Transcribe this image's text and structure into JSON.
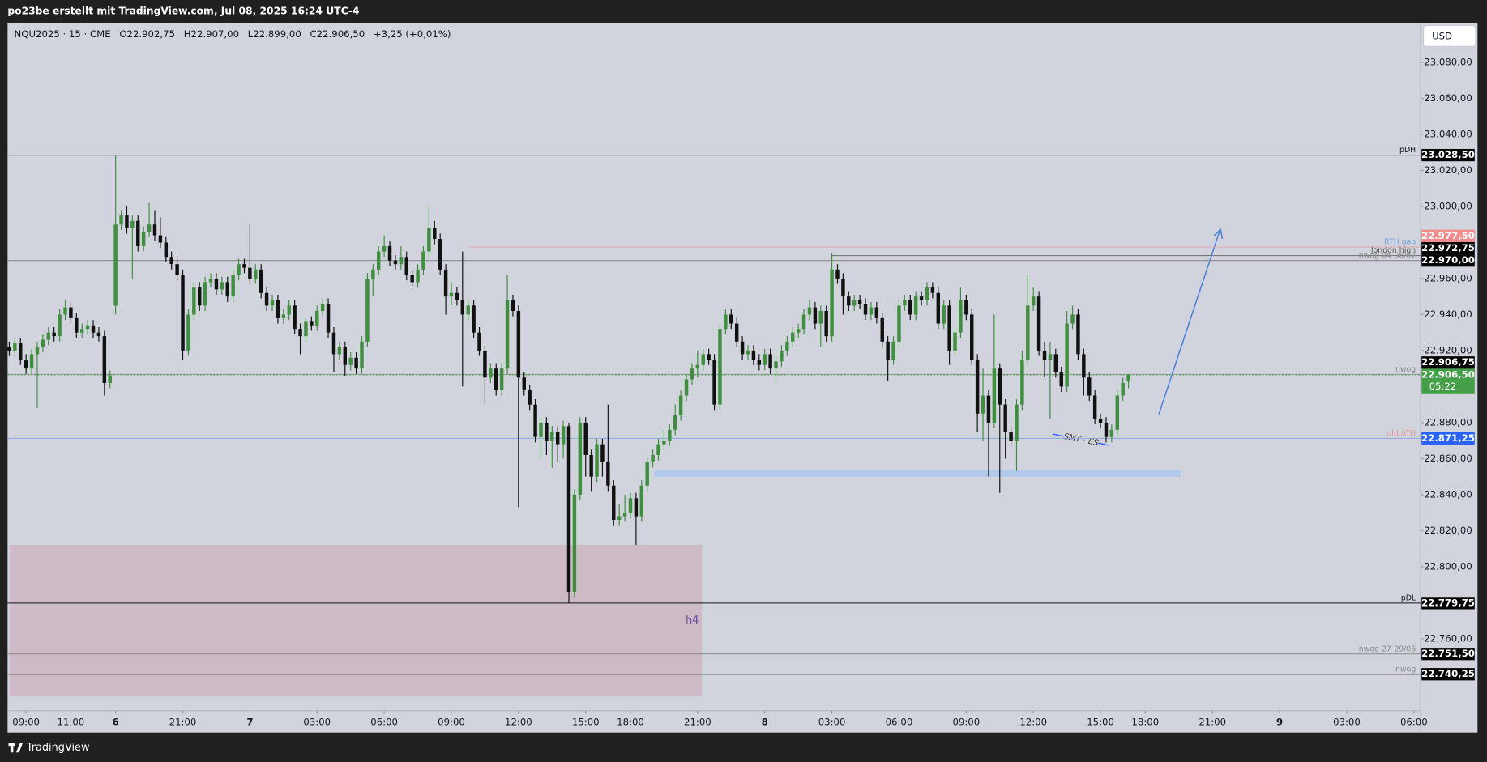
{
  "header": {
    "title": "po23be erstellt mit TradingView.com, Jul 08, 2025 16:24 UTC-4"
  },
  "footer": {
    "brand": "TradingView"
  },
  "currency": "USD",
  "chart_data": {
    "type": "candlestick",
    "legend": {
      "symbol": "NQU2025 · 15 · CME",
      "open": "O22.902,75",
      "high": "H22.907,00",
      "low": "L22.899,00",
      "close": "C22.906,50",
      "change": "+3,25 (+0,01%)"
    },
    "up_color": "#3f8f3f",
    "down_color": "#111111",
    "open": [
      22922,
      22920,
      22924,
      22915,
      22910,
      22918,
      22922,
      22926,
      22930,
      22928,
      22940,
      22944,
      22938,
      22930,
      22932,
      22934,
      22930,
      22928,
      22902,
      22945,
      22990,
      22995,
      22988,
      22992,
      22978,
      22986,
      22990,
      22984,
      22980,
      22972,
      22968,
      22962,
      22920,
      22940,
      22955,
      22945,
      22958,
      22960,
      22954,
      22958,
      22950,
      22962,
      22968,
      22966,
      22960,
      22965,
      22952,
      22945,
      22948,
      22938,
      22940,
      22945,
      22932,
      22928,
      22936,
      22934,
      22942,
      22946,
      22930,
      22918,
      22922,
      22912,
      22916,
      22910,
      22925,
      22960,
      22965,
      22975,
      22978,
      22970,
      22968,
      22972,
      22962,
      22958,
      22965,
      22975,
      22988,
      22982,
      22965,
      22950,
      22952,
      22948,
      22940,
      22945,
      22930,
      22920,
      22905,
      22910,
      22898,
      22910,
      22948,
      22942,
      22905,
      22898,
      22890,
      22872,
      22880,
      22870,
      22875,
      22868,
      22878,
      22786,
      22840,
      22880,
      22862,
      22850,
      22868,
      22858,
      22845,
      22826,
      22828,
      22830,
      22838,
      22828,
      22845,
      22858,
      22862,
      22868,
      22870,
      22876,
      22884,
      22895,
      22904,
      22910,
      22912,
      22918,
      22915,
      22890,
      22932,
      22940,
      22935,
      22925,
      22918,
      22920,
      22915,
      22912,
      22918,
      22910,
      22914,
      22920,
      22925,
      22930,
      22932,
      22940,
      22944,
      22935,
      22942,
      22928,
      22965,
      22960,
      22950,
      22945,
      22948,
      22946,
      22940,
      22944,
      22938,
      22925,
      22915,
      22925,
      22945,
      22948,
      22940,
      22950,
      22948,
      22955,
      22952,
      22935,
      22945,
      22920,
      22930,
      22948,
      22940,
      22915,
      22885,
      22895,
      22880,
      22910,
      22890,
      22875,
      22870,
      22890,
      22915,
      22945,
      22950,
      22920,
      22915,
      22918,
      22908,
      22900,
      22935,
      22940,
      22918,
      22905,
      22895,
      22882,
      22880,
      22872,
      22876,
      22895,
      22902.75
    ],
    "high": [
      22925,
      22927,
      22927,
      22918,
      22921,
      22925,
      22929,
      22933,
      22933,
      22943,
      22948,
      22947,
      22941,
      22935,
      22937,
      22937,
      22933,
      22931,
      22909,
      23028.5,
      22998,
      23000,
      22995,
      22995,
      22989,
      23002,
      22998,
      22994,
      22983,
      22975,
      22971,
      22965,
      22943,
      22958,
      22958,
      22961,
      22963,
      22963,
      22961,
      22961,
      22965,
      22971,
      22971,
      22990,
      22968,
      22968,
      22955,
      22951,
      22951,
      22943,
      22948,
      22948,
      22935,
      22939,
      22939,
      22945,
      22949,
      22949,
      22933,
      22925,
      22925,
      22919,
      22919,
      22928,
      22963,
      22968,
      22978,
      22984,
      22981,
      22973,
      22978,
      22975,
      22965,
      22968,
      22978,
      23000,
      22992,
      22985,
      22968,
      22958,
      22955,
      22975,
      22948,
      22948,
      22933,
      22923,
      22913,
      22913,
      22913,
      22962,
      22951,
      22945,
      22908,
      22901,
      22893,
      22883,
      22883,
      22878,
      22878,
      22881,
      22880,
      22843,
      22883,
      22883,
      22865,
      22871,
      22871,
      22890,
      22848,
      22835,
      22840,
      22841,
      22841,
      22848,
      22861,
      22865,
      22871,
      22876,
      22879,
      22890,
      22898,
      22907,
      22913,
      22920,
      22921,
      22921,
      22918,
      22935,
      22943,
      22943,
      22938,
      22928,
      22923,
      22923,
      22918,
      22921,
      22921,
      22917,
      22923,
      22928,
      22933,
      22935,
      22943,
      22948,
      22947,
      22945,
      22945,
      22974,
      22968,
      22963,
      22953,
      22951,
      22951,
      22949,
      22947,
      22947,
      22941,
      22928,
      22928,
      22948,
      22951,
      22951,
      22953,
      22953,
      22958,
      22958,
      22955,
      22948,
      22948,
      22933,
      22955,
      22951,
      22943,
      22918,
      22910,
      22898,
      22940,
      22913,
      22893,
      22878,
      22893,
      22920,
      22962,
      22955,
      22953,
      22925,
      22925,
      22921,
      22911,
      22942,
      22945,
      22943,
      22921,
      22908,
      22898,
      22885,
      22883,
      22879,
      22898,
      22905,
      22907
    ],
    "low": [
      22917,
      22917,
      22912,
      22907,
      22907,
      22888,
      22919,
      22923,
      22925,
      22925,
      22937,
      22935,
      22927,
      22927,
      22929,
      22927,
      22925,
      22895,
      22899,
      22940,
      22987,
      22985,
      22960,
      22975,
      22975,
      22983,
      22981,
      22977,
      22969,
      22965,
      22959,
      22915,
      22917,
      22937,
      22942,
      22942,
      22955,
      22951,
      22951,
      22947,
      22947,
      22959,
      22963,
      22957,
      22957,
      22949,
      22942,
      22942,
      22935,
      22935,
      22937,
      22929,
      22918,
      22925,
      22931,
      22931,
      22939,
      22927,
      22908,
      22915,
      22906,
      22909,
      22907,
      22907,
      22922,
      22950,
      22962,
      22972,
      22967,
      22965,
      22965,
      22959,
      22955,
      22955,
      22962,
      22972,
      22979,
      22962,
      22940,
      22945,
      22945,
      22900,
      22937,
      22927,
      22917,
      22890,
      22902,
      22895,
      22895,
      22907,
      22939,
      22833,
      22895,
      22887,
      22869,
      22860,
      22862,
      22855,
      22858,
      22860,
      22779.75,
      22783,
      22837,
      22850,
      22842,
      22847,
      22850,
      22842,
      22823,
      22823,
      22825,
      22827,
      22812,
      22825,
      22842,
      22855,
      22859,
      22865,
      22867,
      22873,
      22881,
      22892,
      22901,
      22905,
      22909,
      22912,
      22887,
      22887,
      22929,
      22932,
      22922,
      22915,
      22915,
      22912,
      22909,
      22909,
      22907,
      22903,
      22911,
      22917,
      22922,
      22927,
      22929,
      22937,
      22932,
      22922,
      22925,
      22925,
      22957,
      22940,
      22942,
      22942,
      22943,
      22937,
      22937,
      22935,
      22922,
      22903,
      22912,
      22922,
      22942,
      22937,
      22937,
      22945,
      22945,
      22949,
      22932,
      22932,
      22912,
      22917,
      22927,
      22937,
      22912,
      22875,
      22870,
      22850,
      22877,
      22841,
      22860,
      22867,
      22853,
      22887,
      22912,
      22942,
      22917,
      22905,
      22882,
      22905,
      22897,
      22897,
      22932,
      22915,
      22895,
      22892,
      22879,
      22877,
      22869,
      22869,
      22873,
      22892,
      22899
    ],
    "close": [
      22920,
      22924,
      22915,
      22910,
      22918,
      22922,
      22926,
      22930,
      22928,
      22940,
      22944,
      22938,
      22930,
      22932,
      22934,
      22930,
      22928,
      22902,
      22906,
      22990,
      22995,
      22988,
      22992,
      22978,
      22986,
      22990,
      22984,
      22980,
      22972,
      22968,
      22962,
      22920,
      22940,
      22955,
      22945,
      22958,
      22960,
      22954,
      22958,
      22950,
      22962,
      22968,
      22966,
      22960,
      22965,
      22952,
      22945,
      22948,
      22938,
      22940,
      22945,
      22932,
      22928,
      22936,
      22934,
      22942,
      22946,
      22930,
      22918,
      22922,
      22912,
      22916,
      22910,
      22925,
      22960,
      22965,
      22975,
      22978,
      22970,
      22968,
      22972,
      22962,
      22958,
      22965,
      22975,
      22988,
      22982,
      22965,
      22950,
      22952,
      22948,
      22940,
      22945,
      22930,
      22920,
      22905,
      22910,
      22898,
      22910,
      22948,
      22942,
      22905,
      22898,
      22890,
      22872,
      22880,
      22870,
      22875,
      22868,
      22878,
      22786,
      22840,
      22880,
      22862,
      22850,
      22868,
      22858,
      22845,
      22826,
      22828,
      22830,
      22838,
      22828,
      22845,
      22858,
      22862,
      22868,
      22870,
      22876,
      22884,
      22895,
      22904,
      22910,
      22912,
      22918,
      22915,
      22890,
      22932,
      22940,
      22935,
      22925,
      22918,
      22920,
      22915,
      22912,
      22918,
      22910,
      22914,
      22920,
      22925,
      22930,
      22932,
      22940,
      22944,
      22935,
      22942,
      22928,
      22965,
      22960,
      22950,
      22945,
      22948,
      22946,
      22940,
      22944,
      22938,
      22925,
      22915,
      22925,
      22945,
      22948,
      22940,
      22950,
      22948,
      22955,
      22952,
      22935,
      22945,
      22920,
      22930,
      22948,
      22940,
      22915,
      22885,
      22895,
      22880,
      22910,
      22890,
      22875,
      22870,
      22890,
      22915,
      22945,
      22950,
      22920,
      22915,
      22918,
      22908,
      22900,
      22935,
      22940,
      22918,
      22905,
      22895,
      22882,
      22880,
      22872,
      22876,
      22895,
      22902,
      22906.5
    ],
    "xlim": [
      -0.3,
      252.2
    ],
    "ylim": [
      22720,
      23102
    ],
    "xticks": [
      {
        "value": 3,
        "label": "09:00"
      },
      {
        "value": 11,
        "label": "11:00"
      },
      {
        "value": 19,
        "label": "6"
      },
      {
        "value": 31,
        "label": "21:00"
      },
      {
        "value": 43,
        "label": "7"
      },
      {
        "value": 55,
        "label": "03:00"
      },
      {
        "value": 67,
        "label": "06:00"
      },
      {
        "value": 79,
        "label": "09:00"
      },
      {
        "value": 91,
        "label": "12:00"
      },
      {
        "value": 103,
        "label": "15:00"
      },
      {
        "value": 111,
        "label": "18:00"
      },
      {
        "value": 123,
        "label": "21:00"
      },
      {
        "value": 135,
        "label": "8"
      },
      {
        "value": 147,
        "label": "03:00"
      },
      {
        "value": 159,
        "label": "06:00"
      },
      {
        "value": 171,
        "label": "09:00"
      },
      {
        "value": 183,
        "label": "12:00"
      },
      {
        "value": 195,
        "label": "15:00"
      },
      {
        "value": 203,
        "label": "18:00"
      },
      {
        "value": 215,
        "label": "21:00"
      },
      {
        "value": 227,
        "label": "9"
      },
      {
        "value": 239,
        "label": "03:00"
      },
      {
        "value": 251,
        "label": "06:00"
      }
    ],
    "yticks": [
      {
        "value": 23080,
        "label": "23.080,00"
      },
      {
        "value": 23060,
        "label": "23.060,00"
      },
      {
        "value": 23040,
        "label": "23.040,00"
      },
      {
        "value": 23020,
        "label": "23.020,00"
      },
      {
        "value": 23000,
        "label": "23.000,00"
      },
      {
        "value": 22960,
        "label": "22.960,00"
      },
      {
        "value": 22940,
        "label": "22.940,00"
      },
      {
        "value": 22920,
        "label": "22.920,00"
      },
      {
        "value": 22880,
        "label": "22.880,00"
      },
      {
        "value": 22860,
        "label": "22.860,00"
      },
      {
        "value": 22840,
        "label": "22.840,00"
      },
      {
        "value": 22820,
        "label": "22.820,00"
      },
      {
        "value": 22800,
        "label": "22.800,00"
      },
      {
        "value": 22760,
        "label": "22.760,00"
      }
    ],
    "levels": [
      {
        "name": "pDH",
        "value": 23028.5,
        "value_label": "23.028,50",
        "line_color": "#131722",
        "text_color": "#131722",
        "badge_color": "#000000"
      },
      {
        "name": "RTH gap",
        "value": 22977.5,
        "value_label": "22.977,50",
        "start": 82,
        "line_color": "#e3a9b0",
        "text_color": "#7a9fd6",
        "badge_color": "#f28b8b"
      },
      {
        "name": "london high",
        "value": 22972.75,
        "value_label": "22.972,75",
        "start": 147,
        "line_color": "#6b6b6b",
        "text_color": "#555555",
        "badge_color": "#000000"
      },
      {
        "name": "nwog 04-06/07",
        "value": 22970,
        "value_label": "22.970,00",
        "line_color": "#8a8a8a",
        "text_color": "#8a8a8a",
        "badge_color": "#000000"
      },
      {
        "name": "nwog",
        "value": 22906.75,
        "value_label": "22.906,75",
        "line_color": "#9a9a9a",
        "text_color": "#8a8a8a",
        "badge_color": "#000000"
      },
      {
        "name": "old ATH",
        "value": 22871.25,
        "value_label": "22.871,25",
        "line_color": "#8fa6dc",
        "text_color": "#e89c9c",
        "badge_color": "#2962ff"
      },
      {
        "name": "pDL",
        "value": 22779.75,
        "value_label": "22.779,75",
        "line_color": "#131722",
        "text_color": "#131722",
        "badge_color": "#000000"
      },
      {
        "name": "nwog 27-29/06",
        "value": 22751.5,
        "value_label": "22.751,50",
        "line_color": "#8a8a8a",
        "text_color": "#8a8a8a",
        "badge_color": "#000000"
      },
      {
        "name": "nwog",
        "value": 22740.25,
        "value_label": "22.740,25",
        "line_color": "#8a8a8a",
        "text_color": "#8a8a8a",
        "badge_color": "#000000"
      }
    ],
    "current": {
      "value": 22906.5,
      "value_label": "22.906,50",
      "timer": "05:22",
      "color": "#43a047"
    },
    "annotations": {
      "zone": "h4",
      "smt": "SMT - ES"
    }
  }
}
